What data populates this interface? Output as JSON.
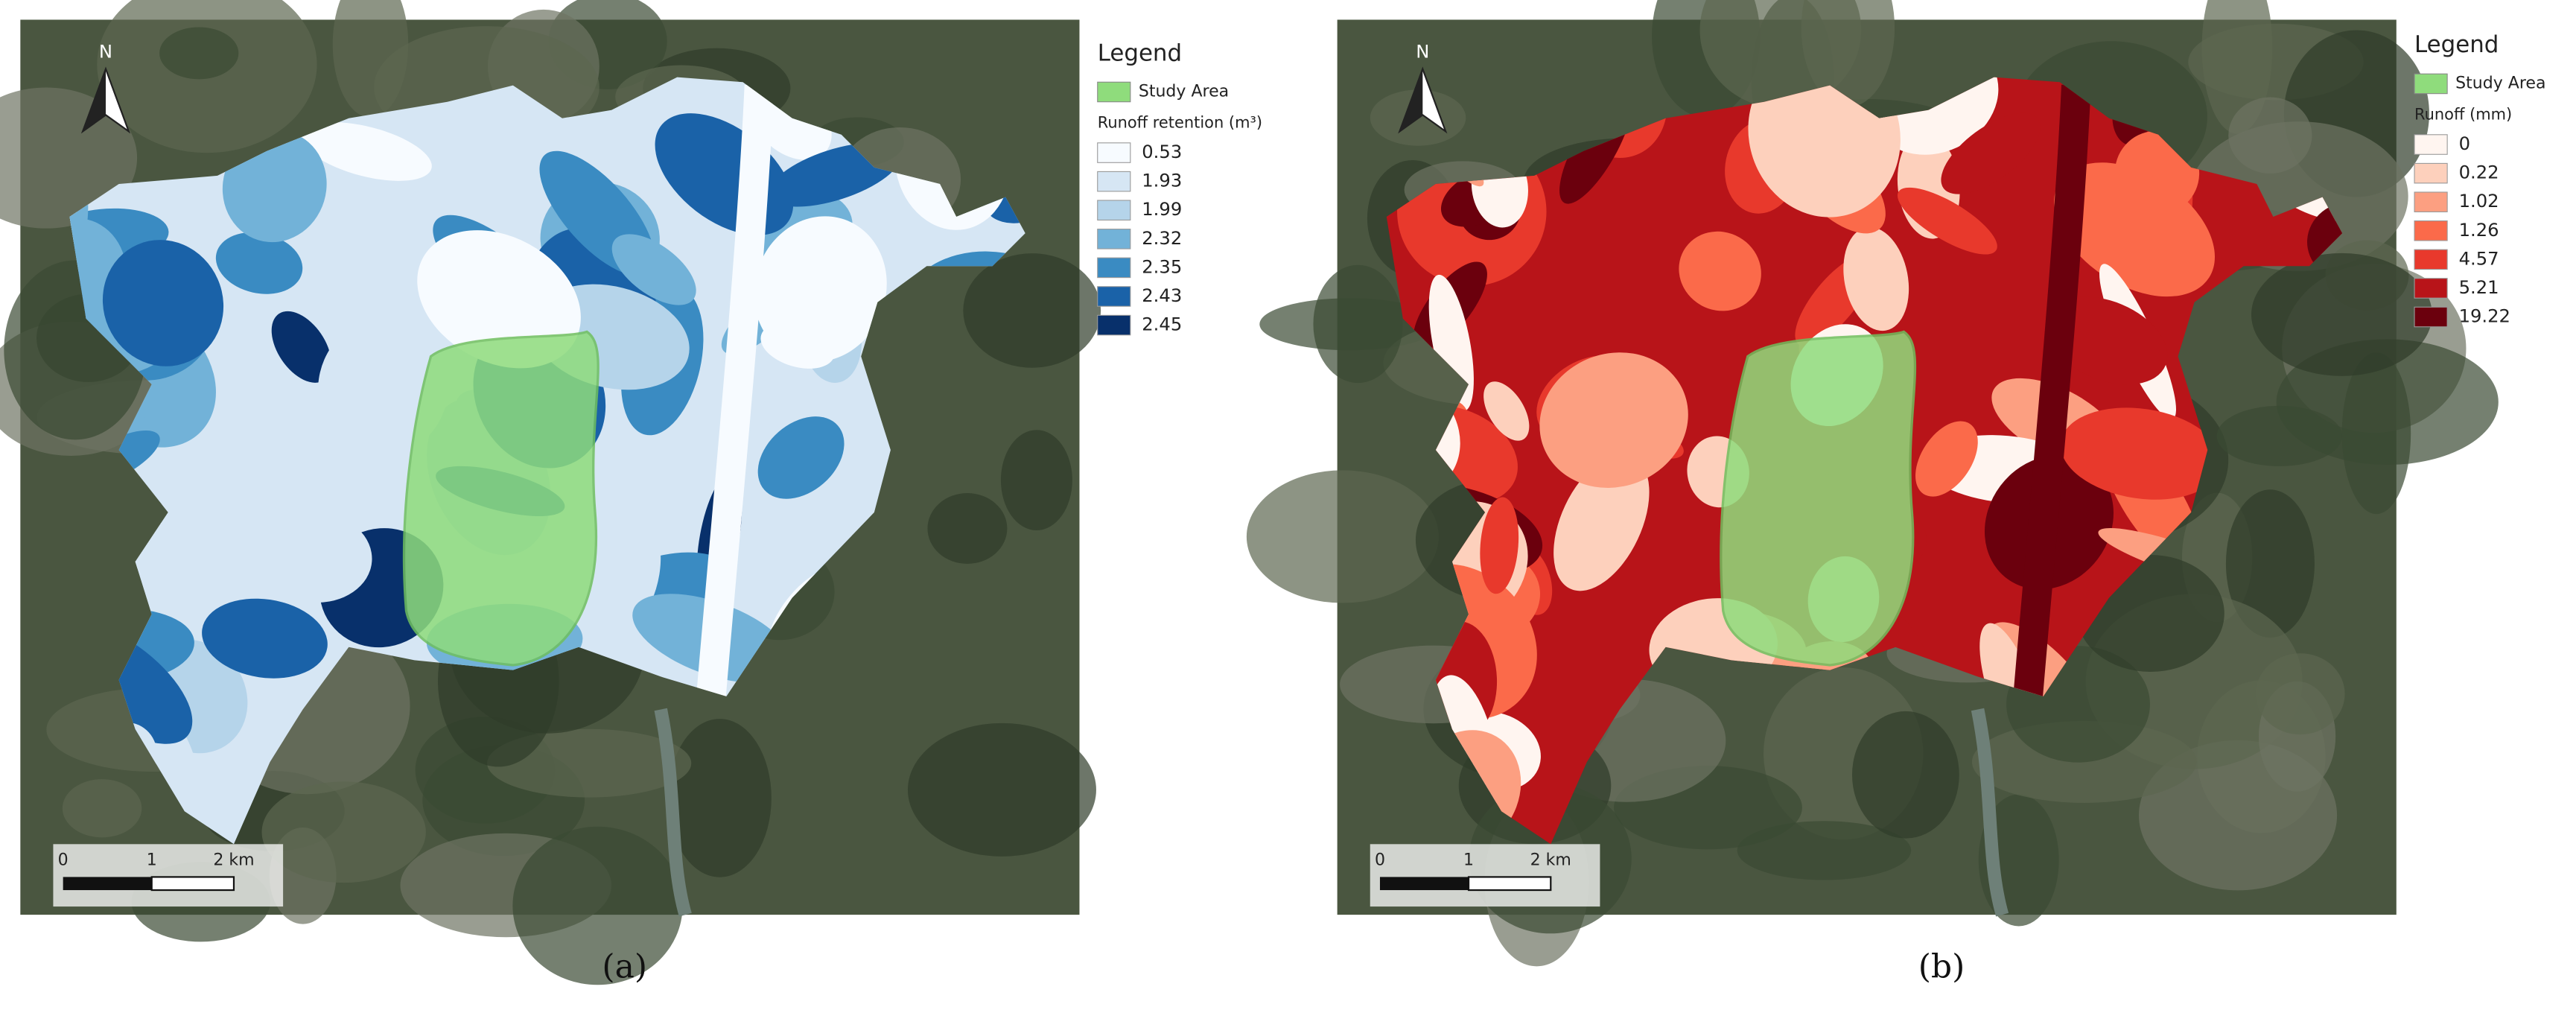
{
  "panels": [
    {
      "caption": "(a)",
      "north": "N",
      "legend": {
        "title": "Legend",
        "study_area": "Study Area",
        "study_area_color": "#8fdc7c",
        "heading": "Runoff retention (m³)",
        "classes": [
          {
            "label": "0.53",
            "color": "#f7fbff"
          },
          {
            "label": "1.93",
            "color": "#d6e6f4"
          },
          {
            "label": "1.99",
            "color": "#b5d4ea"
          },
          {
            "label": "2.32",
            "color": "#72b2d8"
          },
          {
            "label": "2.35",
            "color": "#3a8bc2"
          },
          {
            "label": "2.43",
            "color": "#1a62a8"
          },
          {
            "label": "2.45",
            "color": "#08306b"
          }
        ]
      },
      "scale": [
        "0",
        "1",
        "2 km"
      ]
    },
    {
      "caption": "(b)",
      "north": "N",
      "legend": {
        "title": "Legend",
        "study_area": "Study Area",
        "study_area_color": "#8fdc7c",
        "heading": "Runoff (mm)",
        "classes": [
          {
            "label": "0",
            "color": "#fff5f0"
          },
          {
            "label": "0.22",
            "color": "#fdd0bc"
          },
          {
            "label": "1.02",
            "color": "#fc9f81"
          },
          {
            "label": "1.26",
            "color": "#fb6a4a"
          },
          {
            "label": "4.57",
            "color": "#e8392c"
          },
          {
            "label": "5.21",
            "color": "#b81419"
          },
          {
            "label": "19.22",
            "color": "#6b000d"
          }
        ]
      },
      "scale": [
        "0",
        "1",
        "2 km"
      ]
    }
  ]
}
